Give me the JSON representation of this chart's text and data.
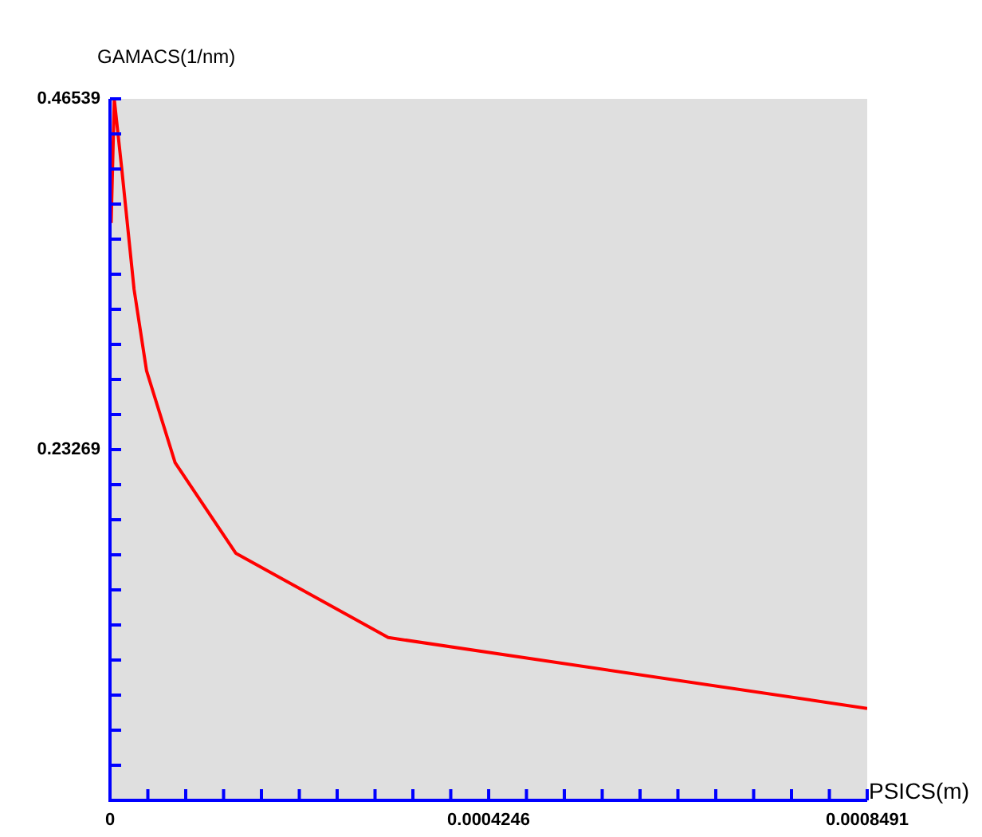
{
  "chart_data": {
    "type": "line",
    "xlabel": "PSICS(m)",
    "ylabel": "GAMACS(1/nm)",
    "x": [
      1.3e-06,
      4.8e-06,
      1.3e-05,
      2.7e-05,
      4.1e-05,
      7.3e-05,
      0.000141,
      0.000312,
      0.0008491
    ],
    "series": [
      {
        "color": "#ff0000",
        "values": [
          0.383,
          0.465,
          0.42,
          0.339,
          0.285,
          0.224,
          0.164,
          0.108,
          0.061
        ]
      }
    ],
    "xlim": [
      0,
      0.0008491
    ],
    "xticks": [
      0,
      {
        "value": 4.246e-05,
        "label": null
      },
      {
        "value": 8.491e-05,
        "label": null
      },
      {
        "value": 0.00012737,
        "label": null
      },
      {
        "value": 0.00016982,
        "label": null
      },
      {
        "value": 0.00021228,
        "label": null
      },
      {
        "value": 0.00025473,
        "label": null
      },
      {
        "value": 0.00029719,
        "label": null
      },
      {
        "value": 0.00033964,
        "label": null
      },
      {
        "value": 0.0003821,
        "label": null
      },
      0.0004246,
      {
        "value": 0.00046701,
        "label": null
      },
      {
        "value": 0.00050946,
        "label": null
      },
      {
        "value": 0.00055192,
        "label": null
      },
      {
        "value": 0.00059437,
        "label": null
      },
      {
        "value": 0.00063683,
        "label": null
      },
      {
        "value": 0.00067928,
        "label": null
      },
      {
        "value": 0.00072174,
        "label": null
      },
      {
        "value": 0.00076419,
        "label": null
      },
      {
        "value": 0.00080665,
        "label": null
      },
      0.0008491
    ],
    "ylim": [
      0,
      0.46539
    ],
    "yticks": [
      {
        "value": 0,
        "label": null
      },
      {
        "value": 0.02327,
        "label": null
      },
      {
        "value": 0.04654,
        "label": null
      },
      {
        "value": 0.06981,
        "label": null
      },
      {
        "value": 0.09308,
        "label": null
      },
      {
        "value": 0.11635,
        "label": null
      },
      {
        "value": 0.13962,
        "label": null
      },
      {
        "value": 0.16289,
        "label": null
      },
      {
        "value": 0.18616,
        "label": null
      },
      {
        "value": 0.20943,
        "label": null
      },
      0.23269,
      {
        "value": 0.25596,
        "label": null
      },
      {
        "value": 0.27923,
        "label": null
      },
      {
        "value": 0.3025,
        "label": null
      },
      {
        "value": 0.32577,
        "label": null
      },
      {
        "value": 0.34904,
        "label": null
      },
      {
        "value": 0.37231,
        "label": null
      },
      {
        "value": 0.39558,
        "label": null
      },
      {
        "value": 0.41885,
        "label": null
      },
      {
        "value": 0.44212,
        "label": null
      },
      0.46539
    ],
    "grid": false,
    "legend": false,
    "marker": "none",
    "line_style": "solid"
  }
}
